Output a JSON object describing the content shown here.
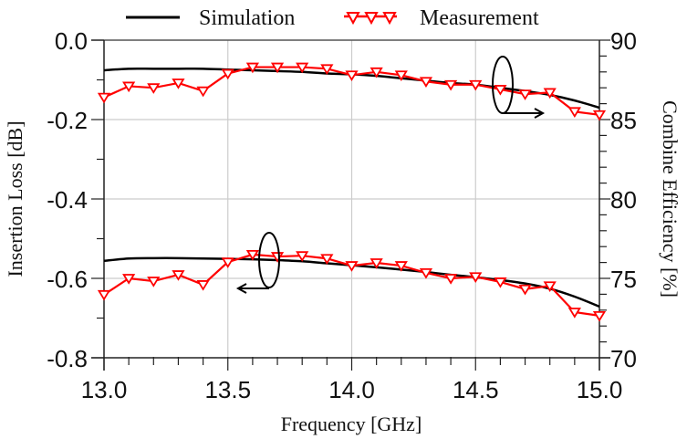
{
  "chart_data": {
    "type": "line",
    "title": "",
    "xlabel": "Frequency [GHz]",
    "ylabel": "Insertion Loss [dB]",
    "ylabel_right": "Combine Efficiency [%]",
    "xlim": [
      13.0,
      15.0
    ],
    "ylim": [
      -0.8,
      0.0
    ],
    "ylim_right": [
      70,
      90
    ],
    "x_ticks": [
      "13.0",
      "13.5",
      "14.0",
      "14.5",
      "15.0"
    ],
    "x_tick_values": [
      13.0,
      13.5,
      14.0,
      14.5,
      15.0
    ],
    "y_ticks": [
      "0.0",
      "-0.2",
      "-0.4",
      "-0.6",
      "-0.8"
    ],
    "y_tick_values": [
      0.0,
      -0.2,
      -0.4,
      -0.6,
      -0.8
    ],
    "y_right_ticks": [
      "90",
      "85",
      "80",
      "75",
      "70"
    ],
    "y_right_tick_values": [
      90,
      85,
      80,
      75,
      70
    ],
    "grid": true,
    "legend_position": "top",
    "legend": [
      "Simulation",
      "Measurement"
    ],
    "colors": {
      "simulation": "#000000",
      "measurement": "#ff0000",
      "grid": "#cccccc",
      "axis": "#222222"
    },
    "series": [
      {
        "name": "Simulation",
        "axis": "left",
        "style": "line",
        "x": [
          13.0,
          13.1,
          13.2,
          13.3,
          13.4,
          13.5,
          13.6,
          13.7,
          13.8,
          13.9,
          14.0,
          14.1,
          14.2,
          14.3,
          14.4,
          14.5,
          14.6,
          14.7,
          14.8,
          14.9,
          15.0
        ],
        "values": [
          -0.556,
          -0.55,
          -0.549,
          -0.549,
          -0.55,
          -0.551,
          -0.552,
          -0.554,
          -0.557,
          -0.562,
          -0.567,
          -0.572,
          -0.578,
          -0.584,
          -0.591,
          -0.597,
          -0.604,
          -0.613,
          -0.626,
          -0.646,
          -0.671
        ]
      },
      {
        "name": "Measurement",
        "axis": "left",
        "style": "line-triangle-down",
        "x": [
          13.0,
          13.1,
          13.2,
          13.3,
          13.4,
          13.5,
          13.6,
          13.7,
          13.8,
          13.9,
          14.0,
          14.1,
          14.2,
          14.3,
          14.4,
          14.5,
          14.6,
          14.7,
          14.8,
          14.9,
          15.0
        ],
        "values": [
          -0.641,
          -0.6,
          -0.607,
          -0.591,
          -0.616,
          -0.559,
          -0.54,
          -0.545,
          -0.543,
          -0.55,
          -0.568,
          -0.561,
          -0.568,
          -0.586,
          -0.6,
          -0.596,
          -0.609,
          -0.627,
          -0.619,
          -0.685,
          -0.694
        ]
      },
      {
        "name": "Simulation",
        "axis": "right",
        "style": "line",
        "x": [
          13.0,
          13.1,
          13.2,
          13.3,
          13.4,
          13.5,
          13.6,
          13.7,
          13.8,
          13.9,
          14.0,
          14.1,
          14.2,
          14.3,
          14.4,
          14.5,
          14.6,
          14.7,
          14.8,
          14.9,
          15.0
        ],
        "values": [
          88.1,
          88.2,
          88.2,
          88.2,
          88.2,
          88.15,
          88.1,
          88.05,
          88.0,
          87.9,
          87.85,
          87.75,
          87.6,
          87.45,
          87.3,
          87.2,
          87.0,
          86.8,
          86.55,
          86.2,
          85.75
        ]
      },
      {
        "name": "Measurement",
        "axis": "right",
        "style": "line-triangle-down",
        "x": [
          13.0,
          13.1,
          13.2,
          13.3,
          13.4,
          13.5,
          13.6,
          13.7,
          13.8,
          13.9,
          14.0,
          14.1,
          14.2,
          14.3,
          14.4,
          14.5,
          14.6,
          14.7,
          14.8,
          14.9,
          15.0
        ],
        "values": [
          86.4,
          87.1,
          87.0,
          87.3,
          86.8,
          87.9,
          88.3,
          88.3,
          88.3,
          88.2,
          87.8,
          88.0,
          87.8,
          87.4,
          87.2,
          87.2,
          86.9,
          86.6,
          86.7,
          85.5,
          85.3
        ]
      }
    ],
    "annotations": [
      {
        "type": "ellipse-arrow",
        "target_axis": "right",
        "direction": "right"
      },
      {
        "type": "ellipse-arrow",
        "target_axis": "left",
        "direction": "left"
      }
    ]
  }
}
